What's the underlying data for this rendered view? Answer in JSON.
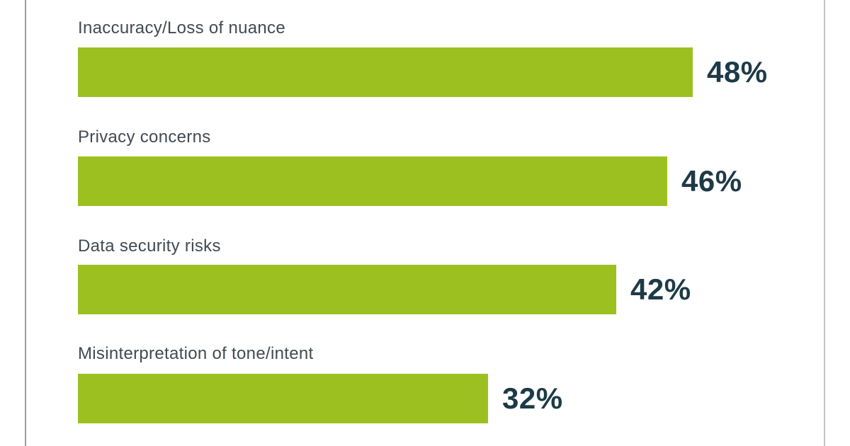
{
  "frame": {
    "left_line_color": "#9c9c9c",
    "right_line_color": "#c2c2c2",
    "background_color": "#ffffff"
  },
  "chart_data": {
    "type": "bar",
    "orientation": "horizontal",
    "title": "",
    "xlabel": "",
    "ylabel": "",
    "categories": [
      "Inaccuracy/Loss of nuance",
      "Privacy concerns",
      "Data security risks",
      "Misinterpretation of tone/intent"
    ],
    "values": [
      48,
      46,
      42,
      32
    ],
    "value_labels": [
      "48%",
      "46%",
      "42%",
      "32%"
    ],
    "unit": "%",
    "xlim": [
      0,
      48
    ],
    "grid": false,
    "legend": false,
    "bar_color": "#9dc021",
    "label_color": "#424a52",
    "value_color": "#1d3a47"
  }
}
